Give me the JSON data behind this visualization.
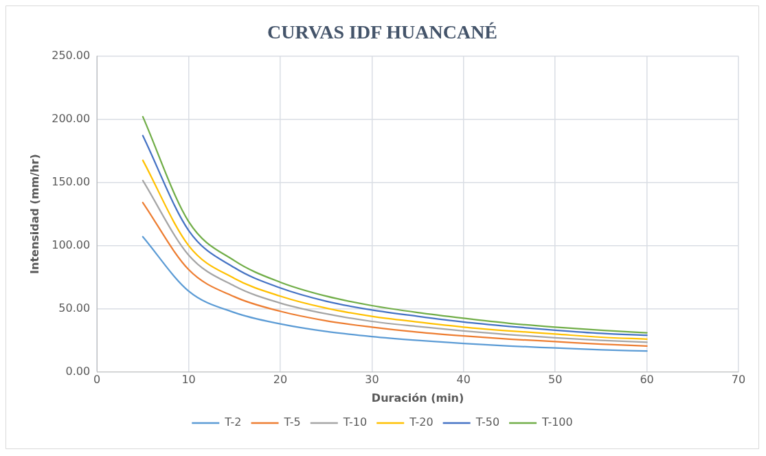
{
  "chart_data": {
    "type": "line",
    "title": "CURVAS IDF HUANCANÉ",
    "xlabel": "Duración (min)",
    "ylabel": "Intensidad (mm/hr)",
    "x": [
      5,
      10,
      15,
      20,
      25,
      30,
      35,
      40,
      45,
      50,
      55,
      60
    ],
    "series": [
      {
        "name": "T-2",
        "color": "#5b9bd5",
        "values": [
          107,
          64,
          47,
          38,
          32,
          28,
          25,
          22.5,
          20.5,
          19,
          17.5,
          16.5
        ]
      },
      {
        "name": "T-5",
        "color": "#ed7d31",
        "values": [
          134,
          81,
          59.5,
          48,
          40.5,
          35.5,
          31.5,
          28.5,
          26,
          24,
          22,
          20.5
        ]
      },
      {
        "name": "T-10",
        "color": "#a5a5a5",
        "values": [
          151.5,
          92.5,
          68,
          54.5,
          46,
          40,
          36,
          32.5,
          29.5,
          27,
          25,
          23.5
        ]
      },
      {
        "name": "T-20",
        "color": "#ffc000",
        "values": [
          167.5,
          100,
          74,
          60,
          50.5,
          44,
          39.5,
          35.5,
          32.5,
          30,
          27.5,
          26
        ]
      },
      {
        "name": "T-50",
        "color": "#4472c4",
        "values": [
          187,
          112,
          82.5,
          66.5,
          56,
          49,
          44,
          39.5,
          36,
          33,
          30.5,
          29
        ]
      },
      {
        "name": "T-100",
        "color": "#70ad47",
        "values": [
          202,
          119,
          88,
          71,
          60,
          52.5,
          47,
          42.5,
          38.5,
          35.5,
          33,
          31
        ]
      }
    ],
    "xlim": [
      0,
      70
    ],
    "xticks": [
      0,
      10,
      20,
      30,
      40,
      50,
      60,
      70
    ],
    "ylim": [
      0,
      250
    ],
    "yticks": [
      {
        "value": 0,
        "label": "0.00"
      },
      {
        "value": 50,
        "label": "50.00"
      },
      {
        "value": 100,
        "label": "100.00"
      },
      {
        "value": 150,
        "label": "150.00"
      },
      {
        "value": 200,
        "label": "200.00"
      },
      {
        "value": 250,
        "label": "250.00"
      }
    ],
    "grid": true,
    "legend": "bottom",
    "marker": "none",
    "line_style": "solid"
  }
}
